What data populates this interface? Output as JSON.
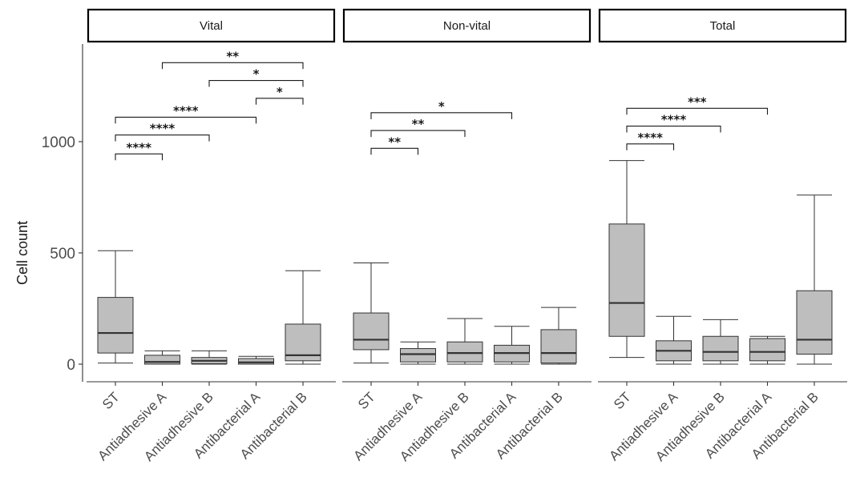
{
  "chart_data": {
    "type": "boxplot",
    "ylabel": "Cell count",
    "yticks": [
      0,
      500,
      1000
    ],
    "ylim": [
      -70,
      1480
    ],
    "categories": [
      "ST",
      "Antiadhesive A",
      "Antiadhesive B",
      "Antibacterial A",
      "Antibacterial B"
    ],
    "panels": [
      {
        "title": "Vital",
        "boxes": [
          {
            "category": "ST",
            "min": 5,
            "q1": 50,
            "median": 140,
            "q3": 300,
            "max": 510
          },
          {
            "category": "Antiadhesive A",
            "min": 0,
            "q1": 0,
            "median": 10,
            "q3": 40,
            "max": 60
          },
          {
            "category": "Antiadhesive B",
            "min": 0,
            "q1": 2,
            "median": 15,
            "q3": 30,
            "max": 60
          },
          {
            "category": "Antibacterial A",
            "min": 0,
            "q1": 0,
            "median": 8,
            "q3": 25,
            "max": 35
          },
          {
            "category": "Antibacterial B",
            "min": 0,
            "q1": 15,
            "median": 40,
            "q3": 180,
            "max": 420
          }
        ],
        "comparisons": [
          {
            "from": "ST",
            "to": "Antiadhesive A",
            "y": 945,
            "label": "****"
          },
          {
            "from": "ST",
            "to": "Antiadhesive B",
            "y": 1030,
            "label": "****"
          },
          {
            "from": "ST",
            "to": "Antibacterial A",
            "y": 1110,
            "label": "****"
          },
          {
            "from": "Antibacterial A",
            "to": "Antibacterial B",
            "y": 1195,
            "label": "*"
          },
          {
            "from": "Antiadhesive B",
            "to": "Antibacterial B",
            "y": 1275,
            "label": "*"
          },
          {
            "from": "Antiadhesive A",
            "to": "Antibacterial B",
            "y": 1355,
            "label": "**"
          }
        ]
      },
      {
        "title": "Non-vital",
        "boxes": [
          {
            "category": "ST",
            "min": 5,
            "q1": 65,
            "median": 110,
            "q3": 230,
            "max": 455
          },
          {
            "category": "Antiadhesive A",
            "min": 0,
            "q1": 10,
            "median": 45,
            "q3": 70,
            "max": 100
          },
          {
            "category": "Antiadhesive B",
            "min": 0,
            "q1": 10,
            "median": 50,
            "q3": 100,
            "max": 205
          },
          {
            "category": "Antibacterial A",
            "min": 0,
            "q1": 10,
            "median": 50,
            "q3": 85,
            "max": 170
          },
          {
            "category": "Antibacterial B",
            "min": 0,
            "q1": 5,
            "median": 50,
            "q3": 155,
            "max": 255
          }
        ],
        "comparisons": [
          {
            "from": "ST",
            "to": "Antiadhesive A",
            "y": 970,
            "label": "**"
          },
          {
            "from": "ST",
            "to": "Antiadhesive B",
            "y": 1050,
            "label": "**"
          },
          {
            "from": "ST",
            "to": "Antibacterial A",
            "y": 1130,
            "label": "*"
          }
        ]
      },
      {
        "title": "Total",
        "boxes": [
          {
            "category": "ST",
            "min": 30,
            "q1": 125,
            "median": 275,
            "q3": 630,
            "max": 915
          },
          {
            "category": "Antiadhesive A",
            "min": 0,
            "q1": 15,
            "median": 60,
            "q3": 105,
            "max": 215
          },
          {
            "category": "Antiadhesive B",
            "min": 0,
            "q1": 15,
            "median": 55,
            "q3": 125,
            "max": 200
          },
          {
            "category": "Antibacterial A",
            "min": 0,
            "q1": 15,
            "median": 55,
            "q3": 115,
            "max": 125
          },
          {
            "category": "Antibacterial B",
            "min": 0,
            "q1": 45,
            "median": 110,
            "q3": 330,
            "max": 760
          }
        ],
        "comparisons": [
          {
            "from": "ST",
            "to": "Antiadhesive A",
            "y": 990,
            "label": "****"
          },
          {
            "from": "ST",
            "to": "Antiadhesive B",
            "y": 1070,
            "label": "****"
          },
          {
            "from": "ST",
            "to": "Antibacterial A",
            "y": 1150,
            "label": "***"
          }
        ]
      }
    ]
  }
}
